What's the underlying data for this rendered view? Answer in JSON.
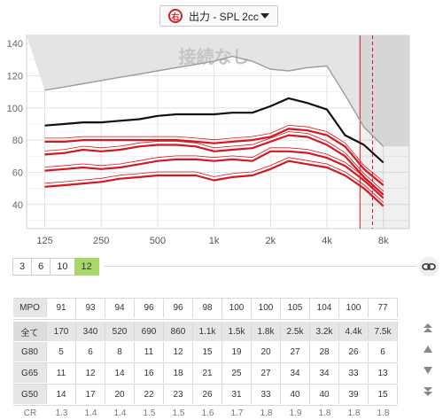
{
  "selector": {
    "side_badge": "右",
    "label": "出力 - SPL 2cc"
  },
  "chart": {
    "watermark": "接続なし",
    "y_ticks": [
      "140",
      "120",
      "100",
      "80",
      "60",
      "40"
    ],
    "x_ticks": [
      "125",
      "250",
      "500",
      "1k",
      "2k",
      "4k",
      "8k"
    ],
    "colors": {
      "grey": "#9c9c9c",
      "black": "#111111",
      "red": "#d6171f",
      "shade": "#e4e4e4"
    }
  },
  "chart_data": {
    "type": "line",
    "xlabel": "",
    "ylabel": "",
    "x_scale": "log",
    "x": [
      125,
      160,
      200,
      250,
      315,
      400,
      500,
      630,
      800,
      1000,
      1250,
      1600,
      2000,
      2500,
      3150,
      4000,
      5000,
      6300,
      8000
    ],
    "ylim": [
      25,
      145
    ],
    "grid": true,
    "series": [
      {
        "values": [
          111,
          113,
          115,
          117,
          119,
          121,
          123,
          125,
          127,
          129,
          132,
          129,
          124,
          123,
          125,
          126,
          108,
          88,
          76
        ]
      },
      {
        "values": [
          89,
          90,
          91,
          91,
          92,
          93,
          95,
          96,
          96,
          96,
          97,
          97,
          101,
          106,
          103,
          99,
          83,
          77,
          66
        ]
      },
      {
        "values": [
          79,
          79,
          80,
          80,
          80,
          80,
          80,
          80,
          79,
          78,
          79,
          80,
          82,
          87,
          86,
          83,
          76,
          62,
          52
        ]
      },
      {
        "values": [
          71,
          72,
          74,
          73,
          74,
          76,
          77,
          77,
          76,
          73,
          74,
          75,
          79,
          83,
          82,
          77,
          70,
          57,
          46
        ]
      },
      {
        "values": [
          61,
          62,
          63,
          62,
          63,
          65,
          67,
          68,
          68,
          67,
          68,
          67,
          73,
          73,
          72,
          69,
          64,
          55,
          44
        ]
      },
      {
        "values": [
          51,
          52,
          53,
          54,
          56,
          57,
          58,
          58,
          58,
          55,
          57,
          58,
          62,
          67,
          65,
          63,
          58,
          50,
          39
        ]
      }
    ]
  },
  "channel_tabs": {
    "labels": [
      "3",
      "6",
      "10",
      "12"
    ],
    "active": "12"
  },
  "table": {
    "mpo": {
      "label": "MPO",
      "values": [
        "91",
        "93",
        "94",
        "96",
        "96",
        "98",
        "100",
        "100",
        "105",
        "104",
        "100",
        "77"
      ]
    },
    "all": {
      "label": "全て",
      "values": [
        "170",
        "340",
        "520",
        "690",
        "860",
        "1.1k",
        "1.5k",
        "1.8k",
        "2.5k",
        "3.2k",
        "4.4k",
        "7.5k"
      ]
    },
    "g80": {
      "label": "G80",
      "values": [
        "5",
        "6",
        "8",
        "11",
        "12",
        "15",
        "19",
        "20",
        "27",
        "28",
        "26",
        "6"
      ]
    },
    "g65": {
      "label": "G65",
      "values": [
        "11",
        "12",
        "14",
        "16",
        "18",
        "21",
        "25",
        "27",
        "34",
        "34",
        "33",
        "13"
      ]
    },
    "g50": {
      "label": "G50",
      "values": [
        "14",
        "17",
        "20",
        "22",
        "23",
        "26",
        "31",
        "33",
        "40",
        "40",
        "39",
        "15"
      ]
    },
    "cr": {
      "label": "CR",
      "values": [
        "1.3",
        "1.4",
        "1.4",
        "1.5",
        "1.5",
        "1.6",
        "1.7",
        "1.8",
        "1.9",
        "1.8",
        "1.8",
        "1.8"
      ]
    }
  },
  "icons": {
    "link": "link-icon",
    "up_double": "double-chevron-up-icon",
    "up": "triangle-up-icon",
    "down": "triangle-down-icon",
    "down_double": "double-chevron-down-icon"
  }
}
